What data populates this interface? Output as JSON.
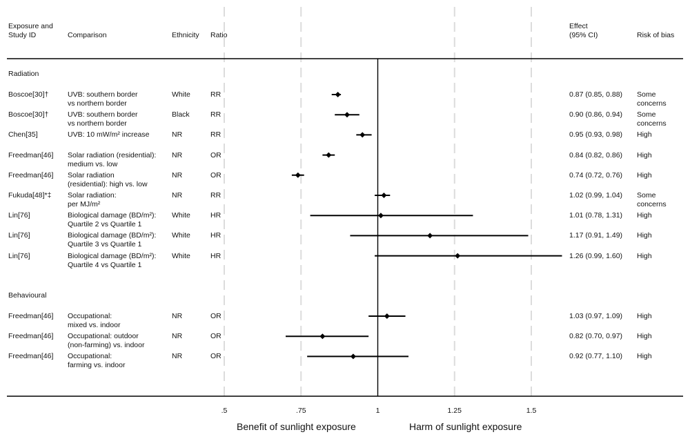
{
  "chart_data": {
    "type": "forest",
    "headers": {
      "exposure": "Exposure and\nStudy ID",
      "comparison": "Comparison",
      "ethnicity": "Ethnicity",
      "ratio": "Ratio",
      "effect": "Effect\n(95% CI)",
      "risk": "Risk of bias"
    },
    "x_ticks": [
      {
        "value": 0.5,
        "label": ".5"
      },
      {
        "value": 0.75,
        "label": ".75"
      },
      {
        "value": 1,
        "label": "1"
      },
      {
        "value": 1.25,
        "label": "1.25"
      },
      {
        "value": 1.5,
        "label": "1.5"
      }
    ],
    "xlim": [
      0.5,
      1.6
    ],
    "reference_line": 1,
    "footer_left": "Benefit of sunlight exposure",
    "footer_right": "Harm of sunlight exposure",
    "sections": [
      {
        "title": "Radiation",
        "rows": [
          {
            "study": "Boscoe[30]†",
            "comparison": "UVB: southern border\nvs northern border",
            "ethnicity": "White",
            "ratio": "RR",
            "est": 0.87,
            "lo": 0.85,
            "hi": 0.88,
            "effect": "0.87 (0.85, 0.88)",
            "risk": "Some\nconcerns"
          },
          {
            "study": "Boscoe[30]†",
            "comparison": "UVB: southern border\nvs northern border",
            "ethnicity": "Black",
            "ratio": "RR",
            "est": 0.9,
            "lo": 0.86,
            "hi": 0.94,
            "effect": "0.90 (0.86, 0.94)",
            "risk": "Some\nconcerns"
          },
          {
            "study": "Chen[35]",
            "comparison": "UVB: 10 mW/m² increase",
            "ethnicity": "NR",
            "ratio": "RR",
            "est": 0.95,
            "lo": 0.93,
            "hi": 0.98,
            "effect": "0.95 (0.93, 0.98)",
            "risk": "High"
          },
          {
            "study": "Freedman[46]",
            "comparison": "Solar radiation (residential):\nmedium vs. low",
            "ethnicity": "NR",
            "ratio": "OR",
            "est": 0.84,
            "lo": 0.82,
            "hi": 0.86,
            "effect": "0.84 (0.82, 0.86)",
            "risk": "High"
          },
          {
            "study": "Freedman[46]",
            "comparison": "Solar radiation\n(residential): high vs. low",
            "ethnicity": "NR",
            "ratio": "OR",
            "est": 0.74,
            "lo": 0.72,
            "hi": 0.76,
            "effect": "0.74 (0.72, 0.76)",
            "risk": "High"
          },
          {
            "study": "Fukuda[48]*‡",
            "comparison": "Solar radiation:\nper MJ/m²",
            "ethnicity": "NR",
            "ratio": "RR",
            "est": 1.02,
            "lo": 0.99,
            "hi": 1.04,
            "effect": "1.02 (0.99, 1.04)",
            "risk": "Some\nconcerns"
          },
          {
            "study": "Lin[76]",
            "comparison": "Biological damage (BD/m²):\nQuartile 2 vs Quartile 1",
            "ethnicity": "White",
            "ratio": "HR",
            "est": 1.01,
            "lo": 0.78,
            "hi": 1.31,
            "effect": "1.01 (0.78, 1.31)",
            "risk": "High"
          },
          {
            "study": "Lin[76]",
            "comparison": "Biological damage (BD/m²):\nQuartile 3 vs Quartile 1",
            "ethnicity": "White",
            "ratio": "HR",
            "est": 1.17,
            "lo": 0.91,
            "hi": 1.49,
            "effect": "1.17 (0.91, 1.49)",
            "risk": "High"
          },
          {
            "study": "Lin[76]",
            "comparison": "Biological damage (BD/m²):\nQuartile 4 vs Quartile 1",
            "ethnicity": "White",
            "ratio": "HR",
            "est": 1.26,
            "lo": 0.99,
            "hi": 1.6,
            "effect": "1.26 (0.99, 1.60)",
            "risk": "High"
          }
        ]
      },
      {
        "title": "Behavioural",
        "rows": [
          {
            "study": "Freedman[46]",
            "comparison": "Occupational:\nmixed vs. indoor",
            "ethnicity": "NR",
            "ratio": "OR",
            "est": 1.03,
            "lo": 0.97,
            "hi": 1.09,
            "effect": "1.03 (0.97, 1.09)",
            "risk": "High"
          },
          {
            "study": "Freedman[46]",
            "comparison": "Occupational: outdoor\n(non-farming) vs. indoor",
            "ethnicity": "NR",
            "ratio": "OR",
            "est": 0.82,
            "lo": 0.7,
            "hi": 0.97,
            "effect": "0.82 (0.70, 0.97)",
            "risk": "High"
          },
          {
            "study": "Freedman[46]",
            "comparison": "Occupational:\nfarming vs. indoor",
            "ethnicity": "NR",
            "ratio": "OR",
            "est": 0.92,
            "lo": 0.77,
            "hi": 1.1,
            "effect": "0.92 (0.77, 1.10)",
            "risk": "High"
          }
        ]
      }
    ]
  }
}
